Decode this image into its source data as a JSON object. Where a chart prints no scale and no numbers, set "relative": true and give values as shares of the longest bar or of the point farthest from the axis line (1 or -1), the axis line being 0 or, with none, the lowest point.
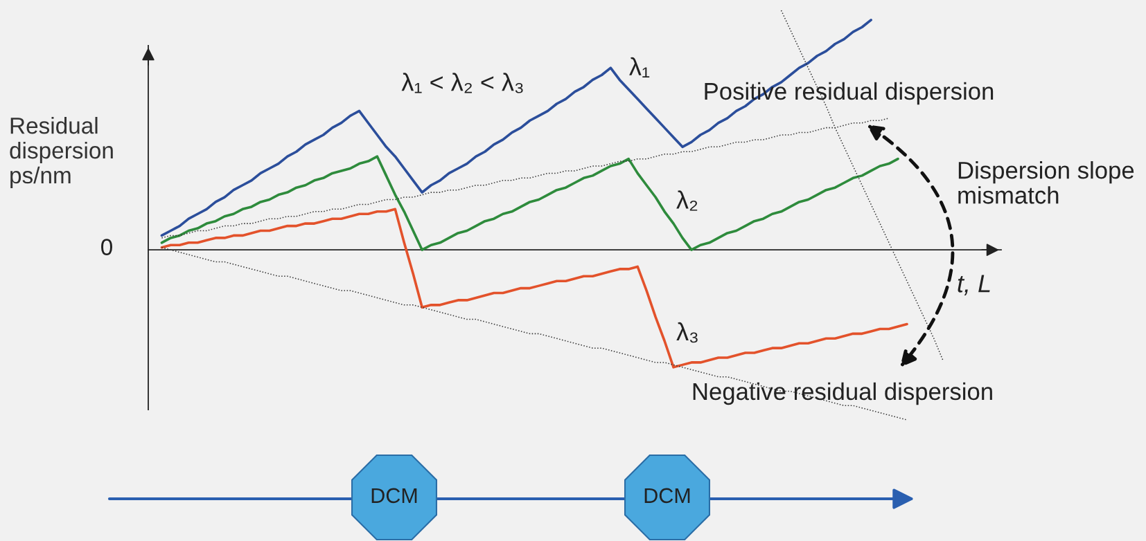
{
  "chart_data": {
    "type": "line",
    "relative": true,
    "ylabel": "Residual\ndispersion\nps/nm",
    "xlabel": "t, L",
    "marker": "none",
    "categories": [
      null,
      null,
      null,
      null,
      null,
      null,
      null,
      null,
      null,
      null,
      null,
      null,
      null,
      null,
      null,
      null,
      null,
      null,
      null,
      null,
      null,
      null,
      null,
      null,
      null,
      null,
      null,
      null,
      null,
      null,
      null,
      null,
      null,
      null,
      null,
      null,
      null,
      null,
      null,
      null,
      null,
      null,
      null,
      null,
      null,
      null,
      null,
      null,
      null,
      null,
      null,
      null,
      null,
      null,
      null,
      null,
      null,
      null,
      null,
      null,
      null,
      null,
      null,
      null,
      null,
      null,
      null,
      null,
      null,
      null,
      null,
      null,
      null,
      null,
      null,
      null,
      null,
      null,
      null,
      null,
      null,
      null,
      null,
      null,
      null,
      null,
      null,
      null
    ],
    "series": [
      {
        "name": "λ₁",
        "color": "#2b4e9b",
        "line_style": "solid",
        "values": [
          0.06,
          0.08,
          0.1,
          0.13,
          0.15,
          0.17,
          0.2,
          0.22,
          0.25,
          0.27,
          0.29,
          0.32,
          0.34,
          0.36,
          0.39,
          0.41,
          0.44,
          0.46,
          0.48,
          0.51,
          0.53,
          0.56,
          0.58,
          0.53,
          0.48,
          0.43,
          0.39,
          0.34,
          0.29,
          0.24,
          0.27,
          0.29,
          0.32,
          0.34,
          0.36,
          0.39,
          0.41,
          0.44,
          0.46,
          0.49,
          0.51,
          0.54,
          0.56,
          0.58,
          0.61,
          0.63,
          0.66,
          0.68,
          0.71,
          0.73,
          0.76,
          0.71,
          0.67,
          0.63,
          0.59,
          0.55,
          0.51,
          0.47,
          0.43,
          0.45,
          0.48,
          0.5,
          0.53,
          0.55,
          0.58,
          0.6,
          0.63,
          0.65,
          0.68,
          0.7,
          0.73,
          0.76,
          0.78,
          0.81,
          0.83,
          0.86,
          0.88,
          0.91,
          0.93,
          0.96,
          null,
          null,
          null,
          null,
          null,
          null,
          null,
          null
        ]
      },
      {
        "name": "λ₂",
        "color": "#2e8b3c",
        "line_style": "solid",
        "values": [
          0.03,
          0.05,
          0.06,
          0.08,
          0.09,
          0.11,
          0.12,
          0.14,
          0.15,
          0.17,
          0.18,
          0.2,
          0.21,
          0.23,
          0.24,
          0.26,
          0.27,
          0.29,
          0.3,
          0.32,
          0.33,
          0.34,
          0.36,
          0.37,
          0.39,
          0.31,
          0.23,
          0.16,
          0.08,
          0,
          0.02,
          0.03,
          0.05,
          0.07,
          0.08,
          0.1,
          0.12,
          0.13,
          0.15,
          0.16,
          0.18,
          0.2,
          0.21,
          0.23,
          0.25,
          0.26,
          0.28,
          0.3,
          0.31,
          0.33,
          0.35,
          0.36,
          0.38,
          0.32,
          0.27,
          0.22,
          0.16,
          0.11,
          0.05,
          0,
          0.02,
          0.03,
          0.05,
          0.07,
          0.08,
          0.1,
          0.12,
          0.13,
          0.15,
          0.16,
          0.18,
          0.2,
          0.21,
          0.23,
          0.25,
          0.26,
          0.28,
          0.3,
          0.31,
          0.33,
          0.35,
          0.36,
          0.38,
          null,
          null,
          null,
          null,
          null
        ]
      },
      {
        "name": "λ₃",
        "color": "#e3522b",
        "line_style": "solid",
        "values": [
          0.01,
          0.02,
          0.02,
          0.03,
          0.03,
          0.04,
          0.05,
          0.05,
          0.06,
          0.06,
          0.07,
          0.08,
          0.08,
          0.09,
          0.1,
          0.1,
          0.11,
          0.11,
          0.12,
          0.13,
          0.13,
          0.14,
          0.15,
          0.15,
          0.16,
          0.16,
          0.17,
          0.03,
          -0.1,
          -0.24,
          -0.23,
          -0.23,
          -0.22,
          -0.21,
          -0.21,
          -0.2,
          -0.19,
          -0.18,
          -0.18,
          -0.17,
          -0.16,
          -0.16,
          -0.15,
          -0.14,
          -0.13,
          -0.13,
          -0.12,
          -0.11,
          -0.11,
          -0.1,
          -0.09,
          -0.08,
          -0.08,
          -0.07,
          -0.17,
          -0.28,
          -0.38,
          -0.49,
          -0.48,
          -0.47,
          -0.47,
          -0.46,
          -0.45,
          -0.45,
          -0.44,
          -0.43,
          -0.43,
          -0.42,
          -0.41,
          -0.41,
          -0.4,
          -0.39,
          -0.39,
          -0.38,
          -0.37,
          -0.37,
          -0.36,
          -0.35,
          -0.35,
          -0.34,
          -0.33,
          -0.33,
          -0.32,
          -0.31,
          null,
          null,
          null,
          null
        ]
      },
      {
        "color": "#333333",
        "line_style": "dotted",
        "values": [
          0.05,
          0.06,
          0.06,
          0.07,
          0.08,
          0.08,
          0.09,
          0.1,
          0.1,
          0.11,
          0.11,
          0.12,
          0.13,
          0.13,
          0.14,
          0.14,
          0.15,
          0.16,
          0.16,
          0.17,
          0.17,
          0.18,
          0.19,
          0.19,
          0.2,
          0.21,
          0.21,
          0.22,
          0.22,
          0.23,
          0.24,
          0.24,
          0.25,
          0.25,
          0.26,
          0.27,
          0.27,
          0.28,
          0.29,
          0.29,
          0.3,
          0.3,
          0.31,
          0.32,
          0.32,
          0.33,
          0.33,
          0.34,
          0.35,
          0.35,
          0.36,
          0.37,
          0.37,
          0.38,
          0.38,
          0.39,
          0.4,
          0.4,
          0.41,
          0.41,
          0.42,
          0.43,
          0.43,
          0.44,
          0.45,
          0.45,
          0.46,
          0.46,
          0.47,
          0.48,
          0.48,
          0.49,
          0.49,
          0.5,
          0.51,
          0.51,
          0.52,
          0.53,
          0.53,
          0.54,
          0.54,
          0.55,
          null,
          null,
          null,
          null,
          null,
          null
        ]
      },
      {
        "color": "#333333",
        "line_style": "dotted",
        "values": [
          0.01,
          0,
          -0.01,
          -0.02,
          -0.03,
          -0.04,
          -0.05,
          -0.05,
          -0.06,
          -0.07,
          -0.08,
          -0.09,
          -0.1,
          -0.11,
          -0.11,
          -0.12,
          -0.13,
          -0.14,
          -0.15,
          -0.16,
          -0.17,
          -0.17,
          -0.18,
          -0.19,
          -0.2,
          -0.21,
          -0.22,
          -0.23,
          -0.23,
          -0.24,
          -0.25,
          -0.26,
          -0.27,
          -0.28,
          -0.29,
          -0.29,
          -0.3,
          -0.31,
          -0.32,
          -0.33,
          -0.34,
          -0.35,
          -0.35,
          -0.36,
          -0.37,
          -0.38,
          -0.39,
          -0.4,
          -0.41,
          -0.41,
          -0.42,
          -0.43,
          -0.44,
          -0.45,
          -0.46,
          -0.47,
          -0.47,
          -0.48,
          -0.49,
          -0.5,
          -0.51,
          -0.52,
          -0.53,
          -0.53,
          -0.54,
          -0.55,
          -0.56,
          -0.57,
          -0.58,
          -0.59,
          -0.59,
          -0.6,
          -0.61,
          -0.62,
          -0.63,
          -0.64,
          -0.65,
          -0.65,
          -0.66,
          -0.67,
          -0.68,
          -0.69,
          -0.7,
          -0.71,
          null,
          null,
          null,
          null
        ]
      },
      {
        "color": "#333333",
        "line_style": "dotted",
        "values": [
          null,
          null,
          null,
          null,
          null,
          null,
          null,
          null,
          null,
          null,
          null,
          null,
          null,
          null,
          null,
          null,
          null,
          null,
          null,
          null,
          null,
          null,
          null,
          null,
          null,
          null,
          null,
          null,
          null,
          null,
          null,
          null,
          null,
          null,
          null,
          null,
          null,
          null,
          null,
          null,
          null,
          null,
          null,
          null,
          null,
          null,
          null,
          null,
          null,
          null,
          null,
          null,
          null,
          null,
          null,
          null,
          null,
          null,
          null,
          null,
          null,
          null,
          null,
          null,
          null,
          null,
          null,
          null,
          null,
          1.0,
          0.92,
          0.84,
          0.76,
          0.68,
          0.6,
          0.51,
          0.43,
          0.35,
          0.27,
          0.19,
          0.11,
          0.03,
          -0.05,
          -0.13,
          -0.21,
          -0.29,
          -0.37,
          -0.46
        ]
      }
    ],
    "annotations": [
      "0",
      "λ₁ < λ₂ < λ₃",
      "Positive residual dispersion",
      "Negative residual dispersion",
      "Dispersion slope\nmismatch",
      "DCM",
      "DCM"
    ]
  }
}
